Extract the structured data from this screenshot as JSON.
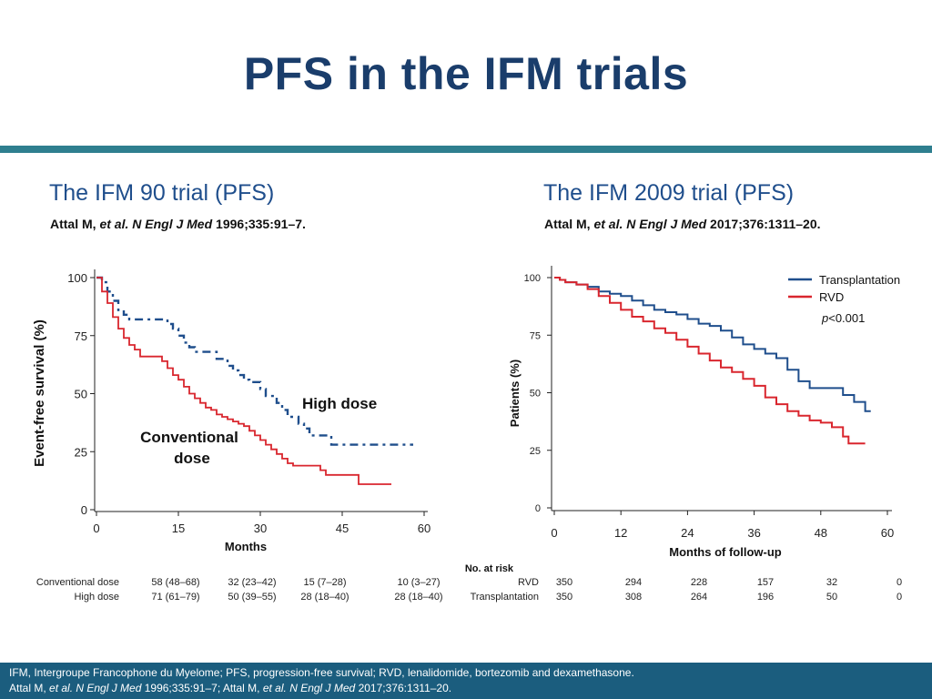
{
  "slide": {
    "title": "PFS in the IFM trials"
  },
  "left": {
    "heading": "The IFM 90 trial (PFS)",
    "citation": {
      "author": "Attal M, ",
      "etal": "et al. N Engl J Med",
      "rest": " 1996;335:91–7."
    }
  },
  "right": {
    "heading": "The IFM 2009 trial (PFS)",
    "citation": {
      "author": "Attal M, ",
      "etal": "et al. N Engl J Med",
      "rest": " 2017;376:1311–20."
    }
  },
  "chart_data": [
    {
      "type": "line",
      "step": true,
      "title": "The IFM 90 trial (PFS)",
      "xlabel": "Months",
      "ylabel": "Event-free survival (%)",
      "xlim": [
        0,
        60
      ],
      "ylim": [
        0,
        100
      ],
      "xticks": [
        0,
        15,
        30,
        45,
        60
      ],
      "yticks": [
        0,
        25,
        50,
        75,
        100
      ],
      "series": [
        {
          "name": "High dose",
          "color": "#1f4e8c",
          "style": "dashdot",
          "label_lines": [
            "High dose"
          ],
          "x": [
            0,
            1,
            2,
            3,
            4,
            5,
            6,
            7,
            12,
            13,
            14,
            15,
            16,
            17,
            18,
            22,
            24,
            25,
            26,
            27,
            28,
            30,
            31,
            33,
            34,
            35,
            37,
            38,
            39,
            43,
            58
          ],
          "y": [
            100,
            98,
            94,
            90,
            86,
            84,
            82,
            82,
            82,
            80,
            78,
            75,
            72,
            70,
            68,
            65,
            62,
            60,
            58,
            56,
            55,
            52,
            49,
            46,
            43,
            40,
            37,
            35,
            32,
            28,
            28
          ]
        },
        {
          "name": "Conventional dose",
          "color": "#d9262e",
          "style": "solid",
          "label_lines": [
            "Conventional",
            "dose"
          ],
          "x": [
            0,
            1,
            2,
            3,
            4,
            5,
            6,
            7,
            8,
            12,
            13,
            14,
            15,
            16,
            17,
            18,
            19,
            20,
            21,
            22,
            23,
            24,
            25,
            26,
            27,
            28,
            29,
            30,
            31,
            32,
            33,
            34,
            35,
            36,
            37,
            41,
            42,
            44,
            45,
            48,
            54
          ],
          "y": [
            100,
            94,
            89,
            83,
            78,
            74,
            71,
            69,
            66,
            64,
            61,
            58,
            56,
            53,
            50,
            48,
            46,
            44,
            43,
            41,
            40,
            39,
            38,
            37,
            36,
            34,
            32,
            30,
            28,
            26,
            24,
            22,
            20,
            19,
            19,
            17,
            15,
            15,
            15,
            11,
            11
          ]
        }
      ],
      "risk_table": {
        "columns": [
          "58 (48–68)",
          "32 (23–42)",
          "15 (7–28)",
          "10 (3–27)"
        ],
        "rows": [
          {
            "label": "Conventional dose",
            "values": [
              "58 (48–68)",
              "32 (23–42)",
              "15 (7–28)",
              "10 (3–27)"
            ]
          },
          {
            "label": "High dose",
            "values": [
              "71 (61–79)",
              "50 (39–55)",
              "28 (18–40)",
              "28 (18–40)"
            ]
          }
        ]
      }
    },
    {
      "type": "line",
      "step": true,
      "title": "The IFM 2009 trial (PFS)",
      "xlabel": "Months of follow-up",
      "ylabel": "Patients (%)",
      "xlim": [
        0,
        60
      ],
      "ylim": [
        0,
        100
      ],
      "xticks": [
        0,
        12,
        24,
        36,
        48,
        60
      ],
      "yticks": [
        0,
        25,
        50,
        75,
        100
      ],
      "legend": {
        "position": "top-right",
        "pvalue": "p<0.001"
      },
      "series": [
        {
          "name": "Transplantation",
          "color": "#1f4e8c",
          "style": "solid",
          "x": [
            0,
            1,
            2,
            4,
            6,
            8,
            10,
            12,
            14,
            16,
            18,
            20,
            22,
            24,
            26,
            28,
            30,
            32,
            34,
            36,
            38,
            40,
            42,
            44,
            46,
            48,
            50,
            52,
            54,
            56,
            57
          ],
          "y": [
            100,
            99,
            98,
            97,
            96,
            94,
            93,
            92,
            90,
            88,
            86,
            85,
            84,
            82,
            80,
            79,
            77,
            74,
            71,
            69,
            67,
            65,
            60,
            55,
            52,
            52,
            52,
            49,
            46,
            42,
            42
          ]
        },
        {
          "name": "RVD",
          "color": "#d9262e",
          "style": "solid",
          "x": [
            0,
            1,
            2,
            4,
            6,
            8,
            10,
            12,
            14,
            16,
            18,
            20,
            22,
            24,
            26,
            28,
            30,
            32,
            34,
            36,
            38,
            40,
            42,
            44,
            46,
            48,
            50,
            52,
            53,
            54,
            55,
            56
          ],
          "y": [
            100,
            99,
            98,
            97,
            95,
            92,
            89,
            86,
            83,
            81,
            78,
            76,
            73,
            70,
            67,
            64,
            61,
            59,
            56,
            53,
            48,
            45,
            42,
            40,
            38,
            37,
            35,
            31,
            28,
            28,
            28,
            28
          ]
        }
      ],
      "risk_table": {
        "title": "No. at risk",
        "rows": [
          {
            "label": "RVD",
            "values": [
              "350",
              "294",
              "228",
              "157",
              "32",
              "0"
            ]
          },
          {
            "label": "Transplantation",
            "values": [
              "350",
              "308",
              "264",
              "196",
              "50",
              "0"
            ]
          }
        ]
      }
    }
  ],
  "footer": {
    "line1": "IFM, Intergroupe Francophone du Myelome; PFS, progression-free survival; RVD, lenalidomide, bortezomib and dexamethasone.",
    "line2_a": "Attal M, ",
    "line2_b": "et al. N Engl J Med",
    "line2_c": " 1996;335:91–7; Attal M, ",
    "line2_d": "et al. N Engl J Med",
    "line2_e": " 2017;376:1311–20."
  }
}
